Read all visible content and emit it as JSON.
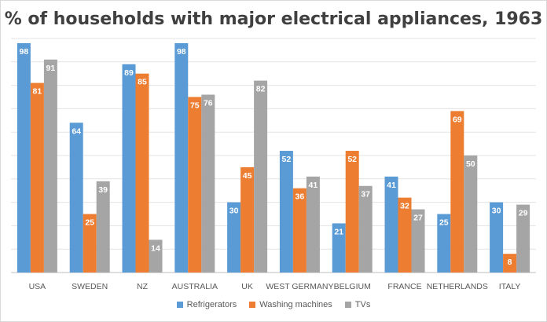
{
  "chart_data": {
    "type": "bar",
    "title": "% of households with major electrical appliances, 1963",
    "categories": [
      "USA",
      "SWEDEN",
      "NZ",
      "AUSTRALIA",
      "UK",
      "WEST GERMANY",
      "BELGIUM",
      "FRANCE",
      "NETHERLANDS",
      "ITALY"
    ],
    "series": [
      {
        "name": "Refrigerators",
        "color": "#5b9bd5",
        "values": [
          98,
          64,
          89,
          98,
          30,
          52,
          21,
          41,
          25,
          30
        ]
      },
      {
        "name": "Washing machines",
        "color": "#ed7d31",
        "values": [
          81,
          25,
          85,
          75,
          45,
          36,
          52,
          32,
          69,
          8
        ]
      },
      {
        "name": "TVs",
        "color": "#a5a5a5",
        "values": [
          91,
          39,
          14,
          76,
          82,
          41,
          37,
          27,
          50,
          29
        ]
      }
    ],
    "ylim": [
      0,
      100
    ],
    "grid": true,
    "legend_position": "bottom",
    "data_labels": true
  }
}
